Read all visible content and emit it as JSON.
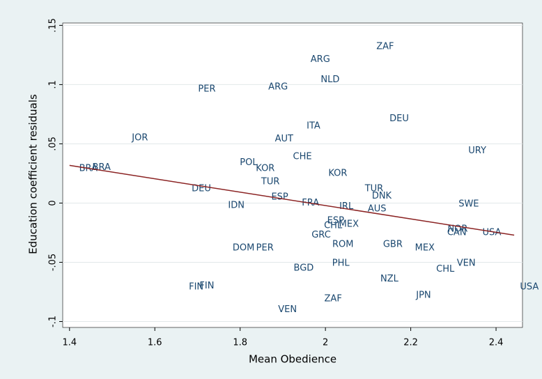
{
  "chart_data": {
    "type": "scatter",
    "x_label": "Mean Obedience",
    "y_label": "Education coefficient residuals",
    "labels": [
      "ZAF",
      "ARG",
      "NLD",
      "PER",
      "ARG",
      "DEU",
      "ITA",
      "JOR",
      "AUT",
      "URY",
      "CHE",
      "POL",
      "KOR",
      "BRA",
      "BRA",
      "KOR",
      "TUR",
      "DEU",
      "TUR",
      "DNK",
      "ESP",
      "FRA",
      "SWE",
      "IDN",
      "IRL",
      "AUS",
      "ESP",
      "CHL",
      "MEX",
      "NOR",
      "CAN",
      "USA",
      "GRC",
      "ROM",
      "GBR",
      "DOM",
      "PER",
      "MEX",
      "VEN",
      "PHL",
      "BGD",
      "CHL",
      "NZL",
      "FIN",
      "FIN",
      "USA",
      "JPN",
      "ZAF",
      "VEN"
    ],
    "x": [
      2.14,
      1.988,
      2.011,
      1.722,
      1.889,
      2.173,
      1.972,
      1.565,
      1.903,
      2.356,
      1.946,
      1.82,
      1.859,
      1.444,
      1.475,
      2.029,
      1.871,
      1.709,
      2.114,
      2.132,
      1.893,
      1.965,
      2.336,
      1.791,
      2.049,
      2.121,
      2.024,
      2.018,
      2.055,
      2.31,
      2.308,
      2.39,
      1.99,
      2.041,
      2.158,
      1.808,
      1.858,
      2.233,
      2.33,
      2.036,
      1.949,
      2.281,
      2.15,
      1.722,
      1.697,
      2.478,
      2.23,
      2.018,
      1.911
    ],
    "values": [
      0.132,
      0.121,
      0.104,
      0.096,
      0.098,
      0.071,
      0.065,
      0.055,
      0.054,
      0.044,
      0.039,
      0.034,
      0.029,
      0.029,
      0.03,
      0.025,
      0.018,
      0.012,
      0.012,
      0.006,
      0.005,
      0.0,
      -0.001,
      -0.002,
      -0.003,
      -0.005,
      -0.015,
      -0.019,
      -0.018,
      -0.022,
      -0.025,
      -0.025,
      -0.027,
      -0.035,
      -0.035,
      -0.038,
      -0.038,
      -0.038,
      -0.051,
      -0.051,
      -0.055,
      -0.056,
      -0.064,
      -0.07,
      -0.071,
      -0.071,
      -0.078,
      -0.081,
      -0.09
    ],
    "color": "#1a476f",
    "fit_line": {
      "x": [
        1.4,
        2.4425
      ],
      "values": [
        0.0318,
        -0.0271
      ],
      "color": "#8b2323"
    },
    "xlim": [
      1.384,
      2.462
    ],
    "ylim": [
      -0.105,
      0.152
    ],
    "xticks": [
      1.4,
      1.6,
      1.8,
      2,
      2.2,
      2.4
    ],
    "yticks": [
      {
        "value": 0.15,
        "label": ".15"
      },
      {
        "value": 0.1,
        "label": ".1"
      },
      {
        "value": 0.05,
        "label": ".05"
      },
      0,
      {
        "value": -0.05,
        "label": "-.05"
      },
      {
        "value": -0.1,
        "label": "-.1"
      }
    ],
    "grid": true
  }
}
